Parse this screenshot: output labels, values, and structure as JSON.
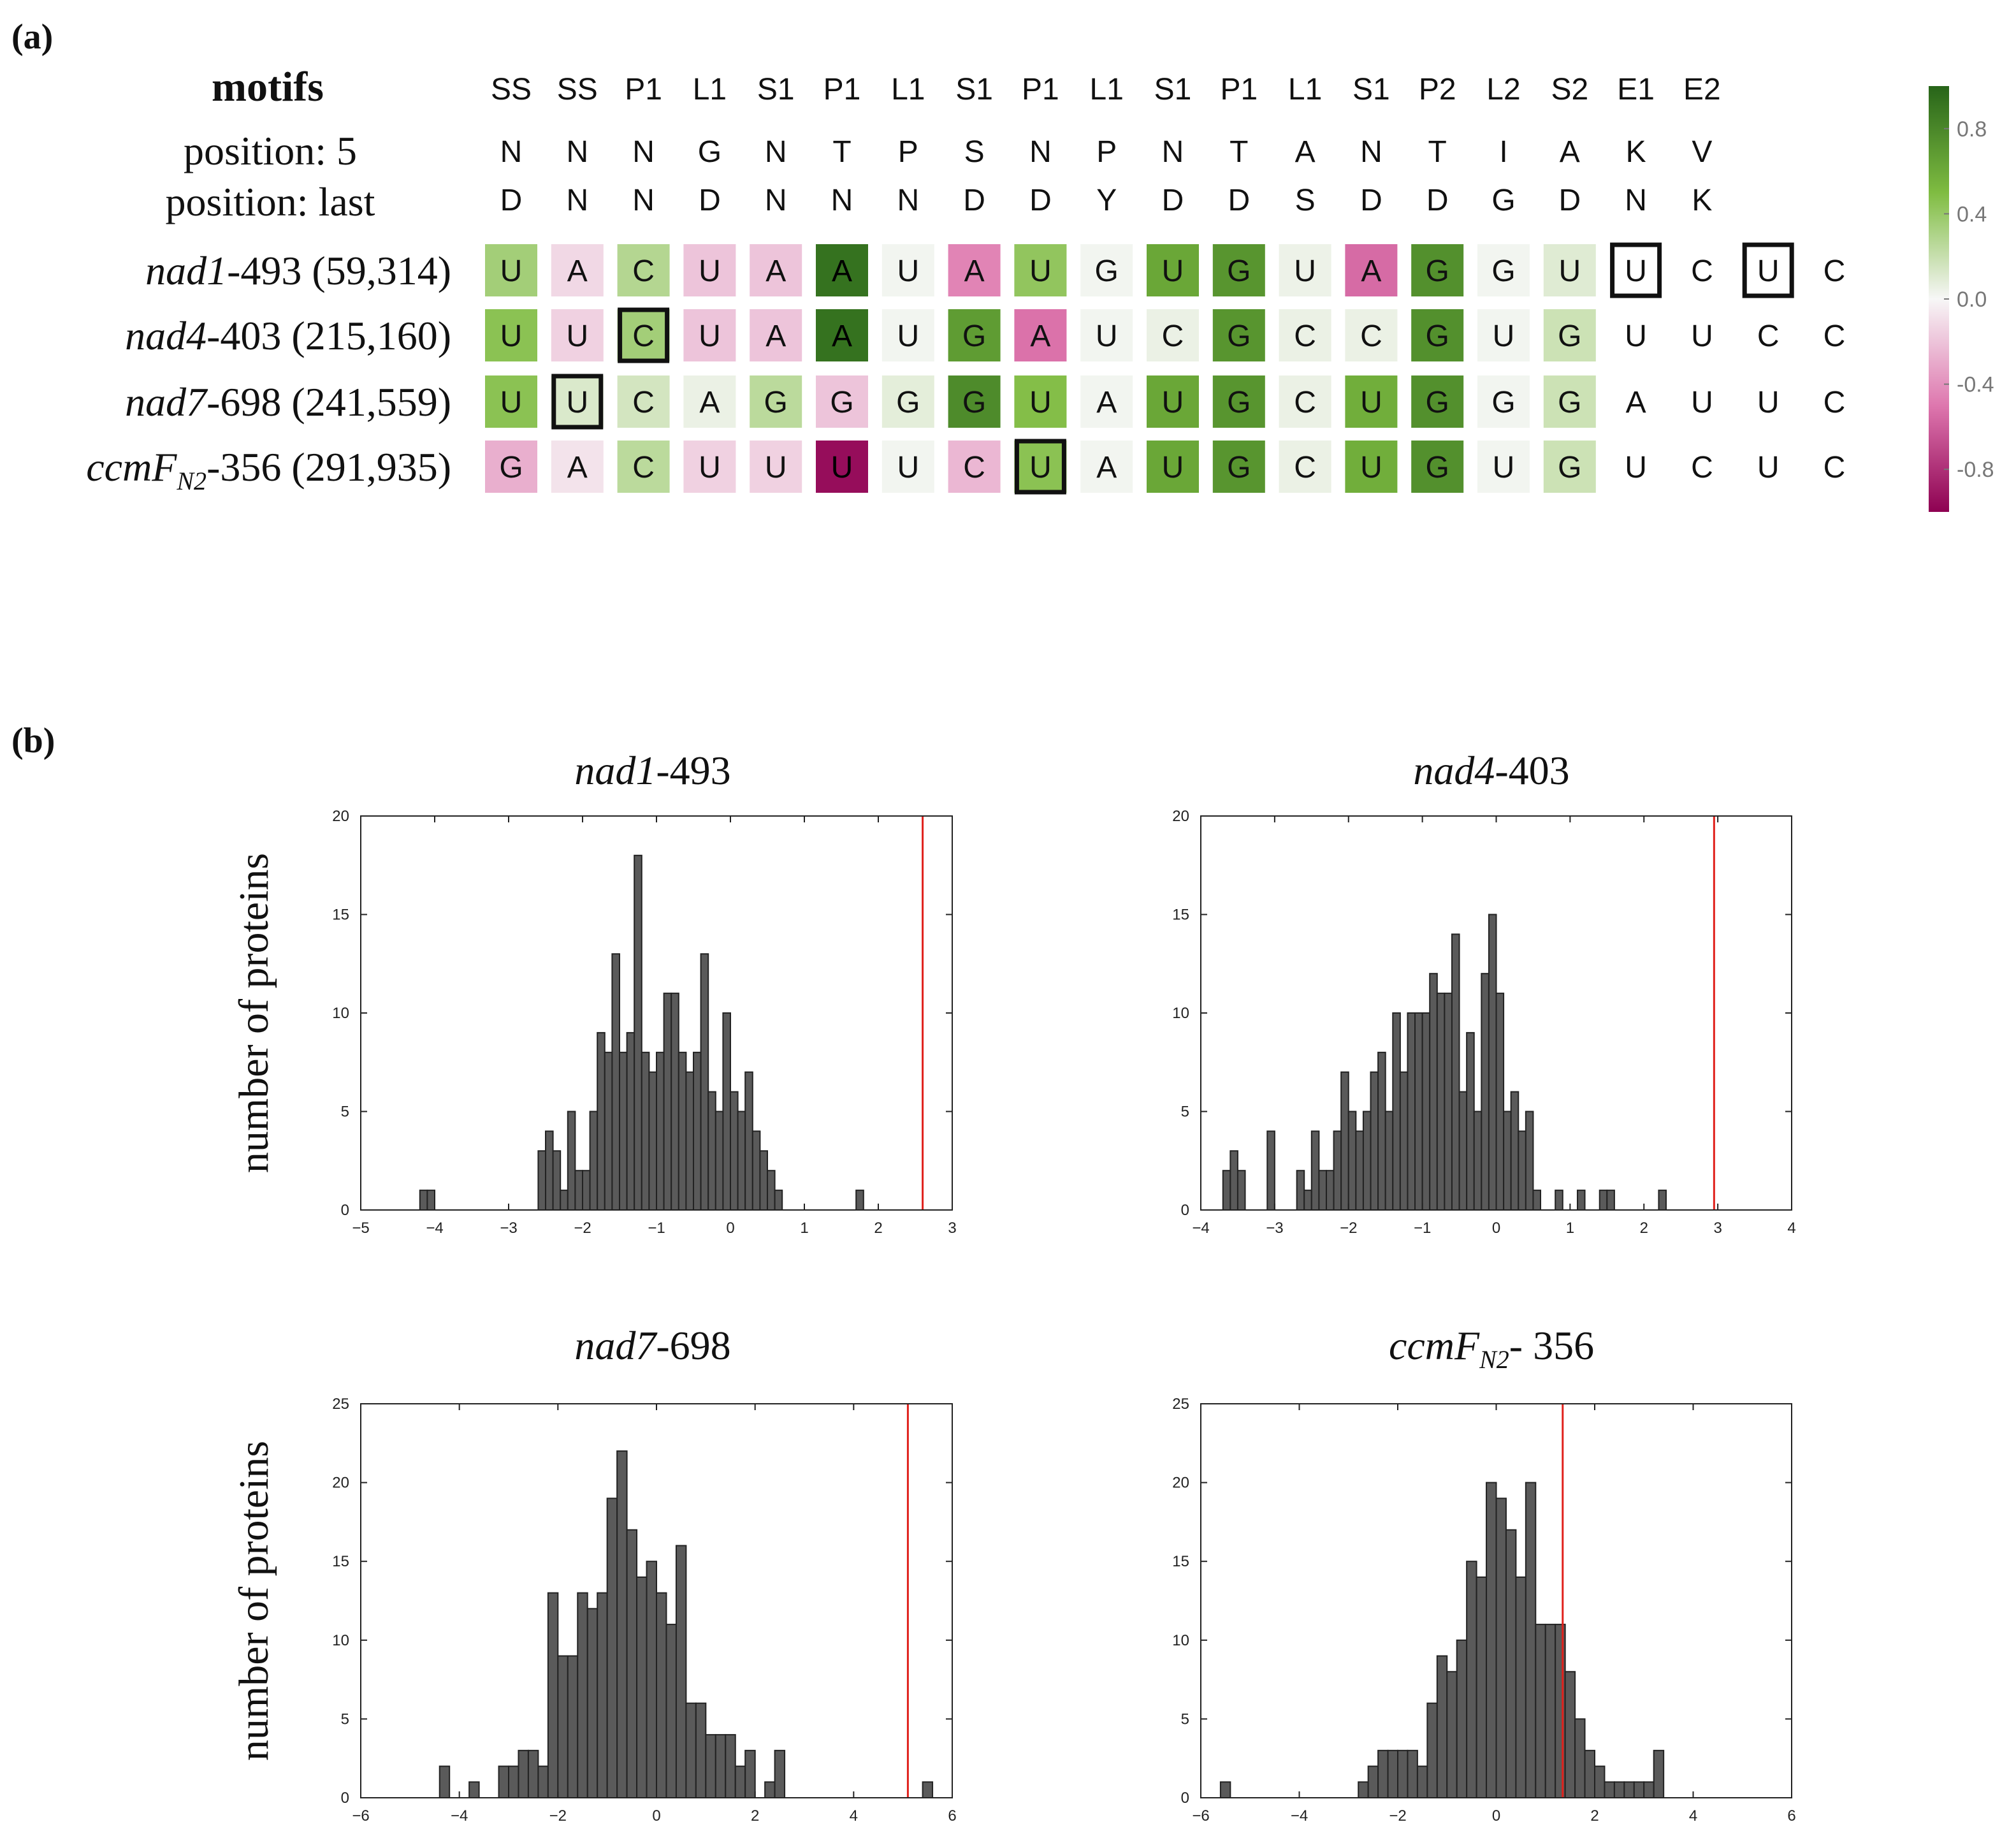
{
  "panel_labels": {
    "a": "(a)",
    "b": "(b)"
  },
  "heatmap": {
    "row_labels": {
      "motifs": "motifs",
      "pos5": "position: 5",
      "poslast": "position: last"
    },
    "motifs": [
      "SS",
      "SS",
      "P1",
      "L1",
      "S1",
      "P1",
      "L1",
      "S1",
      "P1",
      "L1",
      "S1",
      "P1",
      "L1",
      "S1",
      "P2",
      "L2",
      "S2",
      "E1",
      "E2"
    ],
    "position5": [
      "N",
      "N",
      "N",
      "G",
      "N",
      "T",
      "P",
      "S",
      "N",
      "P",
      "N",
      "T",
      "A",
      "N",
      "T",
      "I",
      "A",
      "K",
      "V"
    ],
    "position_last": [
      "D",
      "N",
      "N",
      "D",
      "N",
      "N",
      "N",
      "D",
      "D",
      "Y",
      "D",
      "D",
      "S",
      "D",
      "D",
      "G",
      "D",
      "N",
      "K"
    ],
    "rows": [
      {
        "name_italic": "nad1",
        "name_sub": "",
        "name_rest": "-493 (59,314)",
        "nts": [
          "U",
          "A",
          "C",
          "U",
          "A",
          "A",
          "U",
          "A",
          "U",
          "G",
          "U",
          "G",
          "U",
          "A",
          "G",
          "G",
          "U",
          "U",
          "C",
          "U",
          "C"
        ],
        "scores": [
          0.35,
          -0.12,
          0.28,
          -0.2,
          -0.2,
          0.92,
          0.02,
          -0.45,
          0.42,
          0.02,
          0.62,
          0.72,
          0.04,
          -0.55,
          0.75,
          0.02,
          0.1,
          null,
          null,
          null,
          null
        ],
        "boxed": [
          17,
          19
        ]
      },
      {
        "name_italic": "nad4",
        "name_sub": "",
        "name_rest": "-403 (215,160)",
        "nts": [
          "U",
          "U",
          "C",
          "U",
          "A",
          "A",
          "U",
          "G",
          "A",
          "U",
          "C",
          "G",
          "C",
          "C",
          "G",
          "U",
          "G",
          "U",
          "U",
          "C",
          "C"
        ],
        "scores": [
          0.45,
          -0.15,
          0.35,
          -0.2,
          -0.2,
          0.92,
          0.02,
          0.68,
          -0.52,
          0.02,
          0.05,
          0.72,
          0.05,
          0.05,
          0.75,
          0.02,
          0.18,
          null,
          null,
          null,
          null
        ],
        "boxed": [
          2
        ]
      },
      {
        "name_italic": "nad7",
        "name_sub": "",
        "name_rest": "-698 (241,559)",
        "nts": [
          "U",
          "U",
          "C",
          "A",
          "G",
          "G",
          "G",
          "G",
          "U",
          "A",
          "U",
          "G",
          "C",
          "U",
          "G",
          "G",
          "G",
          "A",
          "U",
          "U",
          "C"
        ],
        "scores": [
          0.45,
          0.12,
          0.15,
          0.05,
          0.25,
          -0.2,
          0.08,
          0.78,
          0.48,
          0.02,
          0.62,
          0.72,
          0.05,
          0.58,
          0.75,
          0.02,
          0.18,
          null,
          null,
          null,
          null
        ],
        "boxed": [
          1
        ]
      },
      {
        "name_italic": "ccmF",
        "name_sub": "N2",
        "name_rest": "-356 (291,935)",
        "nts": [
          "G",
          "A",
          "C",
          "U",
          "U",
          "U",
          "U",
          "C",
          "U",
          "A",
          "U",
          "G",
          "C",
          "U",
          "G",
          "U",
          "G",
          "U",
          "C",
          "U",
          "C"
        ],
        "scores": [
          -0.28,
          -0.08,
          0.25,
          -0.15,
          -0.15,
          -0.95,
          0.02,
          -0.25,
          0.45,
          0.02,
          0.62,
          0.72,
          0.05,
          0.58,
          0.75,
          0.02,
          0.18,
          null,
          null,
          null,
          null
        ],
        "boxed": [
          8
        ]
      }
    ]
  },
  "colorbar": {
    "ticks": [
      "0.8",
      "0.4",
      "0.0",
      "-0.4",
      "-0.8"
    ],
    "tick_values": [
      0.8,
      0.4,
      0.0,
      -0.4,
      -0.8
    ],
    "range": [
      -1.0,
      1.0
    ],
    "colors": {
      "neg": "#8e0152",
      "mid": "#f7f7f7",
      "pos": "#276419"
    }
  },
  "chart_data": [
    {
      "type": "bar",
      "title_italic": "nad1",
      "title_sub": "",
      "title_rest": "-493",
      "ylabel": "number of proteins",
      "xlim": [
        -5,
        3
      ],
      "ylim": [
        0,
        20
      ],
      "xticks": [
        -5,
        -4,
        -3,
        -2,
        -1,
        0,
        1,
        2,
        3
      ],
      "yticks": [
        0,
        5,
        10,
        15,
        20
      ],
      "bin_start": -4.2,
      "bin_width": 0.1,
      "counts": [
        1,
        1,
        0,
        0,
        0,
        0,
        0,
        0,
        0,
        0,
        0,
        0,
        0,
        0,
        0,
        0,
        3,
        4,
        3,
        1,
        5,
        2,
        2,
        5,
        9,
        8,
        13,
        8,
        9,
        18,
        8,
        7,
        8,
        11,
        11,
        8,
        7,
        8,
        13,
        6,
        5,
        10,
        6,
        5,
        7,
        4,
        3,
        2,
        1,
        0,
        0,
        0,
        0,
        0,
        0,
        0,
        0,
        0,
        0,
        1
      ],
      "vline": 2.6,
      "bar_color": "#5a5a5a",
      "vline_color": "#e0201b"
    },
    {
      "type": "bar",
      "title_italic": "nad4",
      "title_sub": "",
      "title_rest": "-403",
      "ylabel": "",
      "xlim": [
        -4,
        4
      ],
      "ylim": [
        0,
        20
      ],
      "xticks": [
        -4,
        -3,
        -2,
        -1,
        0,
        1,
        2,
        3,
        4
      ],
      "yticks": [
        0,
        5,
        10,
        15,
        20
      ],
      "bin_start": -3.7,
      "bin_width": 0.1,
      "counts": [
        2,
        3,
        2,
        0,
        0,
        0,
        4,
        0,
        0,
        0,
        2,
        1,
        4,
        2,
        2,
        4,
        7,
        5,
        4,
        5,
        7,
        8,
        5,
        10,
        7,
        10,
        10,
        10,
        12,
        11,
        11,
        14,
        6,
        9,
        5,
        12,
        15,
        11,
        5,
        6,
        4,
        5,
        1,
        0,
        0,
        1,
        0,
        0,
        1,
        0,
        0,
        1,
        1,
        0,
        0,
        0,
        0,
        0,
        0,
        1
      ],
      "vline": 2.95,
      "bar_color": "#5a5a5a",
      "vline_color": "#e0201b"
    },
    {
      "type": "bar",
      "title_italic": "nad7",
      "title_sub": "",
      "title_rest": "-698",
      "ylabel": "number of proteins",
      "xlim": [
        -6,
        6
      ],
      "ylim": [
        0,
        25
      ],
      "xticks": [
        -6,
        -4,
        -2,
        0,
        2,
        4,
        6
      ],
      "yticks": [
        0,
        5,
        10,
        15,
        20,
        25
      ],
      "bin_start": -4.4,
      "bin_width": 0.2,
      "counts": [
        2,
        0,
        0,
        1,
        0,
        0,
        2,
        2,
        3,
        3,
        2,
        13,
        9,
        9,
        13,
        12,
        13,
        19,
        22,
        17,
        14,
        15,
        13,
        11,
        16,
        6,
        6,
        4,
        4,
        4,
        2,
        3,
        0,
        1,
        3,
        0,
        0,
        0,
        0,
        0,
        0,
        0,
        0,
        0,
        0,
        0,
        0,
        0,
        0,
        1
      ],
      "vline": 5.1,
      "bar_color": "#5a5a5a",
      "vline_color": "#e0201b"
    },
    {
      "type": "bar",
      "title_italic": "ccmF",
      "title_sub": "N2",
      "title_rest": "- 356",
      "ylabel": "",
      "xlim": [
        -6,
        6
      ],
      "ylim": [
        0,
        25
      ],
      "xticks": [
        -6,
        -4,
        -2,
        0,
        2,
        4,
        6
      ],
      "yticks": [
        0,
        5,
        10,
        15,
        20,
        25
      ],
      "bin_start": -5.6,
      "bin_width": 0.2,
      "counts": [
        1,
        0,
        0,
        0,
        0,
        0,
        0,
        0,
        0,
        0,
        0,
        0,
        0,
        0,
        1,
        2,
        3,
        3,
        3,
        3,
        2,
        6,
        9,
        8,
        10,
        15,
        14,
        20,
        19,
        17,
        14,
        20,
        11,
        11,
        11,
        8,
        5,
        3,
        2,
        1,
        1,
        1,
        1,
        1,
        3,
        0,
        0,
        0,
        0,
        0
      ],
      "vline": 1.35,
      "bar_color": "#5a5a5a",
      "vline_color": "#e0201b"
    }
  ]
}
